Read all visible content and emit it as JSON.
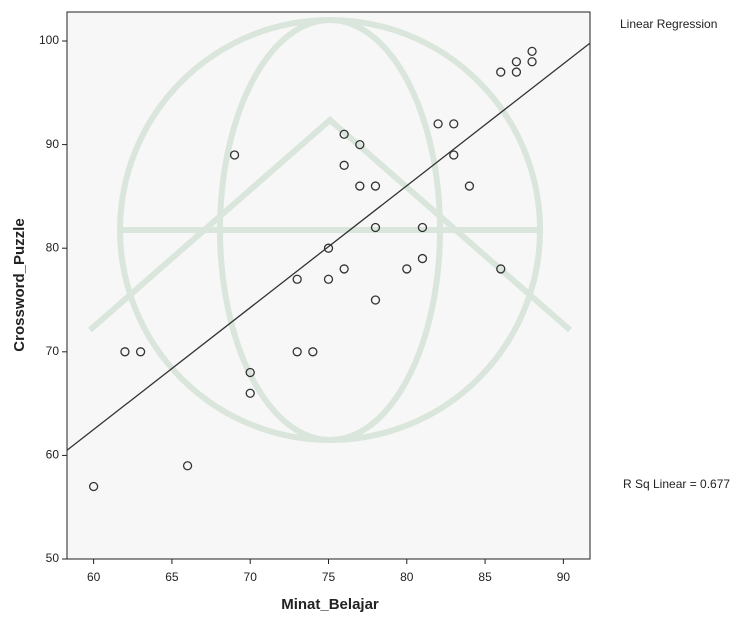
{
  "chart_data": {
    "type": "scatter",
    "x_label": "Minat_Belajar",
    "y_label": "Crossword_Puzzle",
    "legend_title": "Linear Regression",
    "annotation": "R Sq Linear = 0.677",
    "xlim": [
      58.3,
      91.7
    ],
    "ylim": [
      50,
      102.8
    ],
    "xticks": [
      60,
      65,
      70,
      75,
      80,
      85,
      90
    ],
    "yticks": [
      50,
      60,
      70,
      80,
      90,
      100
    ],
    "x": [
      60,
      62,
      63,
      66,
      69,
      70,
      70,
      73,
      73,
      74,
      75,
      75,
      76,
      76,
      76,
      77,
      77,
      78,
      78,
      78,
      80,
      81,
      81,
      82,
      83,
      83,
      84,
      86,
      86,
      87,
      87,
      88,
      88
    ],
    "values": [
      57,
      70,
      70,
      59,
      89,
      68,
      66,
      77,
      70,
      70,
      80,
      77,
      91,
      88,
      78,
      90,
      86,
      86,
      82,
      75,
      78,
      82,
      79,
      92,
      92,
      89,
      86,
      97,
      78,
      98,
      97,
      99,
      98
    ],
    "fit_line": {
      "x": [
        58.3,
        91.7
      ],
      "y": [
        60.5,
        99.8
      ]
    },
    "color": "#333333",
    "line_color": "#333333"
  }
}
